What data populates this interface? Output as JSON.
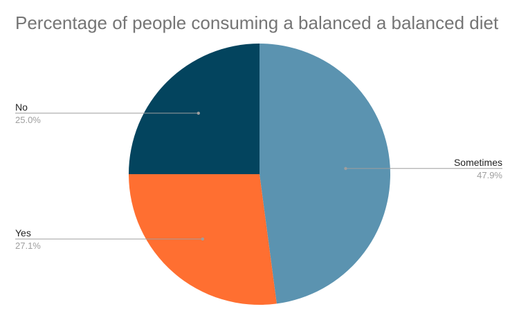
{
  "chart_data": {
    "type": "pie",
    "title": "Percentage of people consuming a balanced a balanced diet",
    "start_angle_deg": 0,
    "direction": "clockwise",
    "slices": [
      {
        "label": "Sometimes",
        "value": 47.9,
        "display": "47.9%",
        "color": "#5b93b0"
      },
      {
        "label": "Yes",
        "value": 27.1,
        "display": "27.1%",
        "color": "#ff6f31"
      },
      {
        "label": "No",
        "value": 25.0,
        "display": "25.0%",
        "color": "#03445e"
      }
    ],
    "legend": "none",
    "label_placement": "outside-with-leader-lines"
  }
}
